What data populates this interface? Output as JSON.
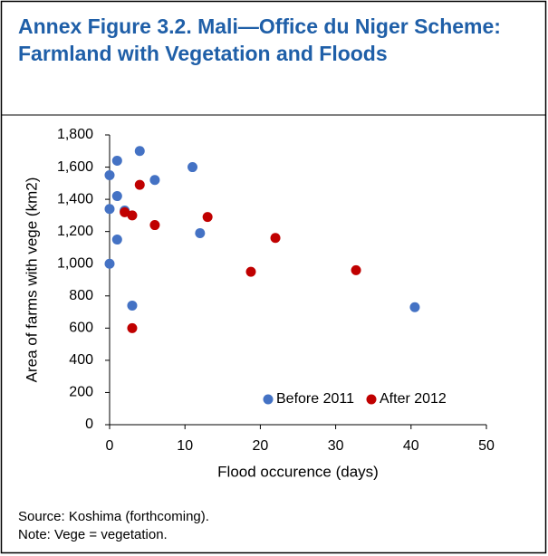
{
  "chart_data": {
    "type": "scatter",
    "title": "Annex Figure 3.2. Mali—Office du Niger Scheme: Farmland with Vegetation and Floods",
    "xlabel": "Flood occurence (days)",
    "ylabel": "Area of farms with vege (km2)",
    "xlim": [
      0,
      50
    ],
    "xticks": [
      0,
      10,
      20,
      30,
      40,
      50
    ],
    "ylim": [
      0,
      1800
    ],
    "yticks": [
      0,
      200,
      400,
      600,
      800,
      {
        "value": 1000,
        "label": "1,000"
      },
      {
        "value": 1200,
        "label": "1,200"
      },
      {
        "value": 1400,
        "label": "1,400"
      },
      {
        "value": 1600,
        "label": "1,600"
      },
      {
        "value": 1800,
        "label": "1,800"
      }
    ],
    "legend": "lower right",
    "series": [
      {
        "name": "Before 2011",
        "color": "#4472c4",
        "x": [
          0,
          1,
          4,
          11,
          6,
          1,
          0,
          2,
          1,
          12,
          0,
          3,
          40.5
        ],
        "values": [
          1550,
          1640,
          1700,
          1600,
          1520,
          1420,
          1340,
          1330,
          1150,
          1190,
          1000,
          740,
          730
        ]
      },
      {
        "name": "After 2012",
        "color": "#c00000",
        "x": [
          4,
          2,
          3,
          6,
          13,
          22,
          18.75,
          32.7,
          3
        ],
        "values": [
          1490,
          1320,
          1300,
          1240,
          1290,
          1160,
          950,
          960,
          600
        ]
      }
    ]
  },
  "source": "Source: Koshima (forthcoming).",
  "note": "Note: Vege = vegetation."
}
